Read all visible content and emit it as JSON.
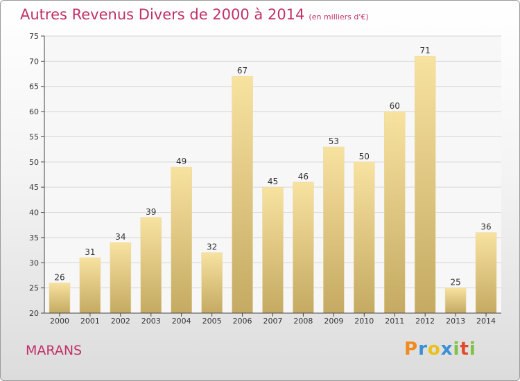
{
  "header": {
    "title": "Autres Revenus Divers de 2000 à 2014",
    "subtitle": "(en milliers d'€)"
  },
  "footer": {
    "city": "MARANS",
    "logo_text": "Proxiti"
  },
  "colors": {
    "title": "#c0306a",
    "bar_top": "#f8e2a0",
    "bar_bottom": "#c4aa62",
    "grid": "#d6d6d6",
    "logo": [
      "#f08a1c",
      "#3a8fd6",
      "#e8c21a",
      "#3a8fd6",
      "#7cc243",
      "#e04a2c",
      "#7cc243"
    ]
  },
  "chart_data": {
    "type": "bar",
    "title": "Autres Revenus Divers de 2000 à 2014",
    "subtitle": "(en milliers d'€)",
    "categories": [
      "2000",
      "2001",
      "2002",
      "2003",
      "2004",
      "2005",
      "2006",
      "2007",
      "2008",
      "2009",
      "2010",
      "2011",
      "2012",
      "2013",
      "2014"
    ],
    "values": [
      26,
      31,
      34,
      39,
      49,
      32,
      67,
      45,
      46,
      53,
      50,
      60,
      71,
      25,
      36
    ],
    "ylim": [
      20,
      75
    ],
    "yticks": [
      20,
      25,
      30,
      35,
      40,
      45,
      50,
      55,
      60,
      65,
      70,
      75
    ],
    "grid": true,
    "data_labels": true
  }
}
